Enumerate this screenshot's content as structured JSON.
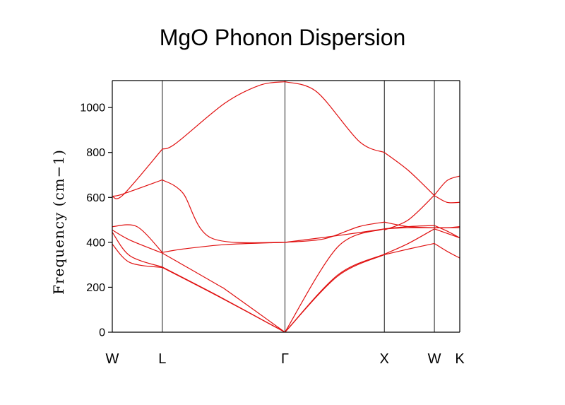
{
  "chart_data": {
    "type": "line",
    "title": "MgO Phonon Dispersion",
    "xlabel": "",
    "ylabel": "Frequency (cm−1)",
    "ylim": [
      0,
      1120
    ],
    "yticks": [
      0,
      200,
      400,
      600,
      800,
      1000
    ],
    "grid": false,
    "legend": "none",
    "line_color": "#e01010",
    "high_symmetry_points": [
      {
        "label": "W",
        "x": 0.0
      },
      {
        "label": "L",
        "x": 0.71
      },
      {
        "label": "Γ",
        "x": 2.45
      },
      {
        "label": "X",
        "x": 3.86
      },
      {
        "label": "W",
        "x": 4.57
      },
      {
        "label": "K",
        "x": 4.93
      }
    ],
    "series": [
      {
        "name": "band-1",
        "x": [
          0.0,
          0.25,
          0.71,
          1.5,
          2.45,
          3.2,
          3.86,
          4.2,
          4.57,
          4.75,
          4.93
        ],
        "values": [
          392,
          310,
          288,
          160,
          0,
          250,
          345,
          370,
          395,
          360,
          330
        ]
      },
      {
        "name": "band-2",
        "x": [
          0.0,
          0.25,
          0.71,
          1.5,
          2.45,
          3.2,
          3.86,
          4.2,
          4.57,
          4.75,
          4.93
        ],
        "values": [
          445,
          340,
          290,
          162,
          0,
          255,
          347,
          395,
          460,
          440,
          420
        ]
      },
      {
        "name": "band-3",
        "x": [
          0.0,
          0.25,
          0.71,
          1.5,
          1.65,
          2.45,
          3.2,
          3.86,
          4.2,
          4.57,
          4.75,
          4.93
        ],
        "values": [
          455,
          410,
          352,
          210,
          180,
          0,
          380,
          460,
          470,
          475,
          450,
          420
        ]
      },
      {
        "name": "band-4",
        "x": [
          0.0,
          0.35,
          0.71,
          1.0,
          1.6,
          2.45,
          3.2,
          3.86,
          4.2,
          4.57,
          4.75,
          4.93
        ],
        "values": [
          470,
          470,
          355,
          370,
          390,
          400,
          430,
          460,
          465,
          465,
          465,
          465
        ]
      },
      {
        "name": "band-5",
        "x": [
          0.0,
          0.15,
          0.71,
          1.0,
          1.4,
          2.45,
          3.0,
          3.5,
          3.86,
          4.2,
          4.57,
          4.75,
          4.93
        ],
        "values": [
          605,
          615,
          678,
          620,
          420,
          400,
          415,
          470,
          490,
          470,
          465,
          465,
          470
        ]
      },
      {
        "name": "band-6",
        "x": [
          0.0,
          0.15,
          0.71,
          0.9,
          1.6,
          2.1,
          2.45,
          2.9,
          3.5,
          3.86,
          4.2,
          4.57,
          4.75,
          4.93
        ],
        "values": [
          605,
          610,
          815,
          840,
          1020,
          1100,
          1115,
          1070,
          850,
          800,
          720,
          608,
          578,
          578
        ]
      },
      {
        "name": "band-7",
        "x": [
          3.86,
          4.2,
          4.57,
          4.75,
          4.93
        ],
        "values": [
          455,
          500,
          610,
          675,
          695
        ]
      }
    ]
  }
}
